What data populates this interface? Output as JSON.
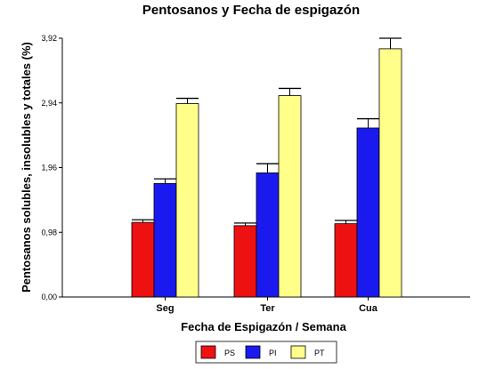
{
  "chart_data": {
    "type": "bar",
    "title": "Pentosanos y Fecha de espigazón",
    "xlabel": "Fecha de Espigazón / Semana",
    "ylabel": "Pentosanos solubles, insolubles y totales (%)",
    "categories": [
      "Seg",
      "Ter",
      "Cua"
    ],
    "yticks": [
      "0,00",
      "0,98",
      "1,96",
      "2,94",
      "3,92"
    ],
    "ylim": [
      0,
      3.92
    ],
    "grid": false,
    "legend_position": "bottom",
    "series": [
      {
        "name": "PS",
        "color": "#ee1111",
        "values": [
          1.13,
          1.08,
          1.11
        ],
        "errors": [
          0.04,
          0.04,
          0.05
        ]
      },
      {
        "name": "PI",
        "color": "#1a1aee",
        "values": [
          1.72,
          1.88,
          2.56
        ],
        "errors": [
          0.07,
          0.14,
          0.14
        ]
      },
      {
        "name": "PT",
        "color": "#ffff8a",
        "values": [
          2.93,
          3.05,
          3.76
        ],
        "errors": [
          0.08,
          0.11,
          0.16
        ]
      }
    ]
  }
}
